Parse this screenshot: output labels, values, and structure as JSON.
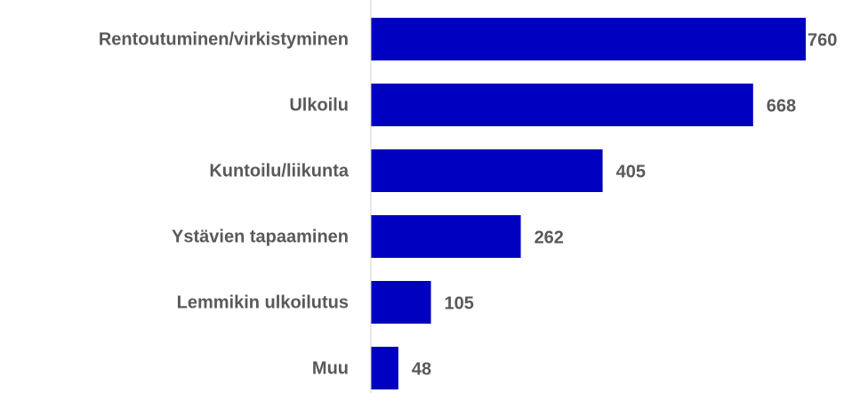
{
  "chart_data": {
    "type": "barh",
    "categories": [
      "Rentoutuminen/virkistyminen",
      "Ulkoilu",
      "Kuntoilu/liikunta",
      "Ystävien tapaaminen",
      "Lemmikin ulkoilutus",
      "Muu"
    ],
    "values": [
      760,
      668,
      405,
      262,
      105,
      48
    ],
    "color": "#0000c0",
    "xlim": [
      0,
      760
    ]
  }
}
